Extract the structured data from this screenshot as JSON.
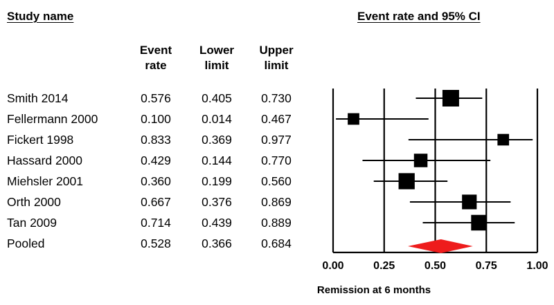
{
  "headers": {
    "study_name": "Study name",
    "effect": "Event rate and 95% CI",
    "col_event": [
      "Event",
      "rate"
    ],
    "col_lower": [
      "Lower",
      "limit"
    ],
    "col_upper": [
      "Upper",
      "limit"
    ]
  },
  "rows": [
    {
      "name": "Smith 2014",
      "rate": "0.576",
      "lower": "0.405",
      "upper": "0.730"
    },
    {
      "name": "Fellermann 2000",
      "rate": "0.100",
      "lower": "0.014",
      "upper": "0.467"
    },
    {
      "name": "Fickert 1998",
      "rate": "0.833",
      "lower": "0.369",
      "upper": "0.977"
    },
    {
      "name": "Hassard 2000",
      "rate": "0.429",
      "lower": "0.144",
      "upper": "0.770"
    },
    {
      "name": "Miehsler 2001",
      "rate": "0.360",
      "lower": "0.199",
      "upper": "0.560"
    },
    {
      "name": "Orth 2000",
      "rate": "0.667",
      "lower": "0.376",
      "upper": "0.869"
    },
    {
      "name": "Tan 2009",
      "rate": "0.714",
      "lower": "0.439",
      "upper": "0.889"
    },
    {
      "name": "Pooled",
      "rate": "0.528",
      "lower": "0.366",
      "upper": "0.684"
    }
  ],
  "chart_data": {
    "type": "forest",
    "title": "Event rate and 95% CI",
    "xlabel": "Remission at 6 months",
    "xlim": [
      0,
      1
    ],
    "xticks": [
      0,
      0.25,
      0.5,
      0.75,
      1
    ],
    "xtick_labels": [
      "0.00",
      "0.25",
      "0.50",
      "0.75",
      "1.00"
    ],
    "series": [
      {
        "study": "Smith 2014",
        "estimate": 0.576,
        "lower": 0.405,
        "upper": 0.73,
        "weight": 1.0
      },
      {
        "study": "Fellermann 2000",
        "estimate": 0.1,
        "lower": 0.014,
        "upper": 0.467,
        "weight": 0.48
      },
      {
        "study": "Fickert 1998",
        "estimate": 0.833,
        "lower": 0.369,
        "upper": 0.977,
        "weight": 0.48
      },
      {
        "study": "Hassard 2000",
        "estimate": 0.429,
        "lower": 0.144,
        "upper": 0.77,
        "weight": 0.68
      },
      {
        "study": "Miehsler 2001",
        "estimate": 0.36,
        "lower": 0.199,
        "upper": 0.56,
        "weight": 0.95
      },
      {
        "study": "Orth 2000",
        "estimate": 0.667,
        "lower": 0.376,
        "upper": 0.869,
        "weight": 0.8
      },
      {
        "study": "Tan 2009",
        "estimate": 0.714,
        "lower": 0.439,
        "upper": 0.889,
        "weight": 0.9
      }
    ],
    "pooled": {
      "estimate": 0.528,
      "lower": 0.366,
      "upper": 0.684
    },
    "colors": {
      "markers": "#000000",
      "pooled": "#ee1c1c",
      "lines": "#000000"
    }
  }
}
